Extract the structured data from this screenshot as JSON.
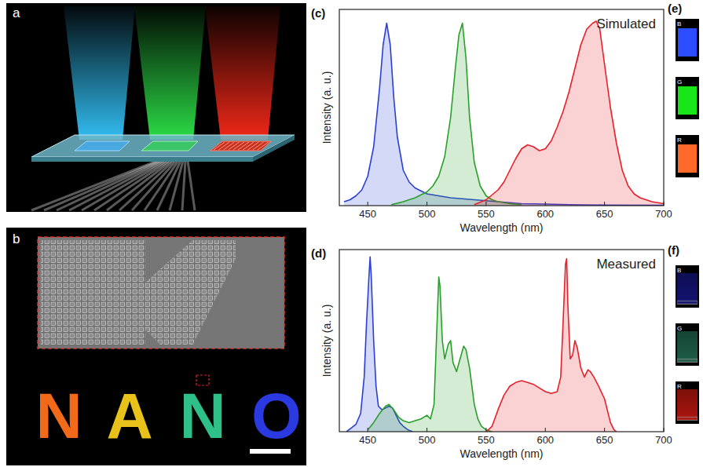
{
  "panel_a": {
    "label": "a"
  },
  "panel_b": {
    "label": "b",
    "letters": [
      {
        "text": "N",
        "color": "#f06a1a"
      },
      {
        "text": "A",
        "color": "#e8c21a"
      },
      {
        "text": "N",
        "color": "#2fc08a"
      },
      {
        "text": "O",
        "color": "#2a3ae0"
      }
    ]
  },
  "panel_e": {
    "label": "(e)",
    "swatches": [
      {
        "label": "B",
        "color": "#2b4dff"
      },
      {
        "label": "G",
        "color": "#19e619"
      },
      {
        "label": "R",
        "color": "#ff6a2a"
      }
    ]
  },
  "panel_f": {
    "label": "(f)",
    "swatches": [
      {
        "label": "B",
        "color": "#12126e"
      },
      {
        "label": "G",
        "color": "#1d5a45"
      },
      {
        "label": "R",
        "color": "#a5150e"
      }
    ]
  },
  "chart_data": [
    {
      "type": "area",
      "panel": "(c)",
      "annotation": "Simulated",
      "x_label": "Wavelength (nm)",
      "y_label": "Intensity (a. u.)",
      "xlim": [
        426,
        700
      ],
      "xticks": [
        450,
        500,
        550,
        600,
        650,
        700
      ],
      "ylim": [
        0,
        1
      ],
      "tick_labels": "x",
      "series": [
        {
          "color": "#2a3fd6",
          "x": [
            430,
            435,
            440,
            445,
            450,
            455,
            460,
            463,
            466,
            469,
            472,
            475,
            480,
            485,
            490,
            500,
            510,
            520,
            530,
            540,
            550,
            560,
            570,
            580,
            600,
            620,
            650,
            700
          ],
          "values": [
            0.02,
            0.03,
            0.05,
            0.08,
            0.15,
            0.3,
            0.6,
            0.82,
            0.93,
            0.82,
            0.55,
            0.35,
            0.18,
            0.12,
            0.09,
            0.06,
            0.05,
            0.04,
            0.035,
            0.03,
            0.025,
            0.02,
            0.015,
            0.01,
            0.008,
            0.005,
            0.003,
            0.002
          ]
        },
        {
          "color": "#2aa02a",
          "x": [
            470,
            480,
            490,
            500,
            505,
            510,
            515,
            520,
            524,
            527,
            530,
            533,
            536,
            540,
            545,
            550,
            555,
            560,
            570,
            580
          ],
          "values": [
            0.005,
            0.02,
            0.04,
            0.07,
            0.1,
            0.15,
            0.25,
            0.45,
            0.7,
            0.87,
            0.93,
            0.75,
            0.45,
            0.22,
            0.1,
            0.05,
            0.03,
            0.02,
            0.01,
            0.005
          ]
        },
        {
          "color": "#e8202a",
          "x": [
            540,
            550,
            560,
            565,
            570,
            575,
            580,
            585,
            590,
            595,
            600,
            605,
            610,
            615,
            620,
            625,
            630,
            635,
            640,
            643,
            646,
            650,
            655,
            660,
            665,
            670,
            675,
            680,
            690,
            700
          ],
          "values": [
            0.005,
            0.03,
            0.08,
            0.12,
            0.18,
            0.24,
            0.29,
            0.31,
            0.3,
            0.28,
            0.29,
            0.33,
            0.4,
            0.48,
            0.58,
            0.7,
            0.82,
            0.9,
            0.93,
            0.94,
            0.9,
            0.72,
            0.5,
            0.32,
            0.18,
            0.1,
            0.06,
            0.04,
            0.02,
            0.01
          ]
        }
      ]
    },
    {
      "type": "area",
      "panel": "(d)",
      "annotation": "Measured",
      "x_label": "Wavelength (nm)",
      "y_label": "Intensity (a. u.)",
      "xlim": [
        426,
        700
      ],
      "xticks": [
        450,
        500,
        550,
        600,
        650,
        700
      ],
      "ylim": [
        0,
        1
      ],
      "tick_labels": "x",
      "series": [
        {
          "color": "#2a3fd6",
          "x": [
            432,
            436,
            440,
            444,
            447,
            449,
            451,
            452,
            453,
            455,
            457,
            459,
            462,
            465,
            468,
            471,
            474,
            477,
            480,
            484,
            488
          ],
          "values": [
            0,
            0.02,
            0.04,
            0.1,
            0.3,
            0.6,
            0.85,
            0.96,
            0.85,
            0.5,
            0.25,
            0.14,
            0.12,
            0.13,
            0.14,
            0.13,
            0.09,
            0.05,
            0.03,
            0.01,
            0
          ]
        },
        {
          "color": "#2aa02a",
          "x": [
            450,
            455,
            460,
            465,
            468,
            472,
            476,
            480,
            485,
            490,
            495,
            500,
            503,
            506,
            508,
            510,
            511,
            513,
            515,
            518,
            520,
            522,
            525,
            528,
            531,
            533,
            536,
            540,
            543,
            546,
            550,
            555
          ],
          "values": [
            0.01,
            0.05,
            0.1,
            0.14,
            0.15,
            0.12,
            0.08,
            0.06,
            0.05,
            0.06,
            0.07,
            0.09,
            0.07,
            0.15,
            0.5,
            0.85,
            0.8,
            0.5,
            0.4,
            0.48,
            0.5,
            0.38,
            0.33,
            0.4,
            0.47,
            0.45,
            0.35,
            0.15,
            0.07,
            0.03,
            0.01,
            0
          ]
        },
        {
          "color": "#e8202a",
          "x": [
            550,
            555,
            560,
            565,
            570,
            575,
            580,
            585,
            590,
            595,
            600,
            605,
            610,
            613,
            615,
            617,
            618,
            619,
            621,
            623,
            625,
            627,
            630,
            633,
            636,
            638,
            641,
            645,
            650,
            655,
            658,
            660
          ],
          "values": [
            0,
            0.03,
            0.12,
            0.2,
            0.25,
            0.27,
            0.28,
            0.27,
            0.26,
            0.24,
            0.22,
            0.21,
            0.22,
            0.3,
            0.6,
            0.92,
            0.95,
            0.7,
            0.4,
            0.42,
            0.5,
            0.46,
            0.35,
            0.3,
            0.34,
            0.33,
            0.3,
            0.25,
            0.18,
            0.05,
            0.01,
            0
          ]
        }
      ]
    }
  ]
}
